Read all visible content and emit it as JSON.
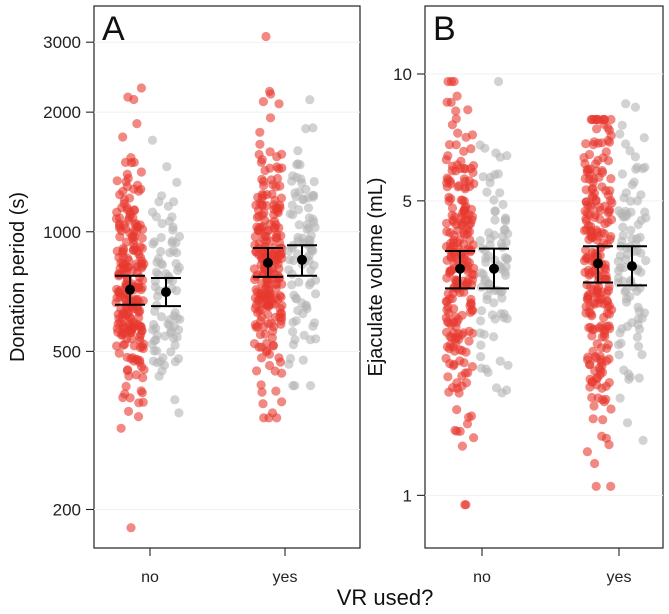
{
  "figure": {
    "shared_xlabel": "VR used?",
    "colors": {
      "red": "#e8382e",
      "grey": "#b4b4b4",
      "mean": "#000000",
      "frame": "#222222"
    }
  },
  "chart_data": [
    {
      "type": "scatter",
      "panel_label": "A",
      "ylabel": "Donation period (s)",
      "xlabel": "VR used?",
      "yscale": "log",
      "ylim": [
        160,
        3700
      ],
      "yticks": [
        200,
        500,
        1000,
        2000,
        3000
      ],
      "ytick_labels": [
        "200",
        "500",
        "1000",
        "2000",
        "3000"
      ],
      "categories": [
        "no",
        "yes"
      ],
      "series": [
        {
          "name": "red",
          "color": "#e8382e",
          "groups": [
            {
              "category": "no",
              "n": 230,
              "median": 720,
              "spread": 0.34,
              "min": 180,
              "max": 2300,
              "mean": 715,
              "ci": [
                655,
                775
              ]
            },
            {
              "category": "yes",
              "n": 240,
              "median": 840,
              "spread": 0.36,
              "min": 340,
              "max": 3100,
              "mean": 835,
              "ci": [
                770,
                910
              ]
            }
          ]
        },
        {
          "name": "grey",
          "color": "#b4b4b4",
          "groups": [
            {
              "category": "no",
              "n": 85,
              "median": 720,
              "spread": 0.3,
              "min": 350,
              "max": 1700,
              "mean": 705,
              "ci": [
                650,
                765
              ]
            },
            {
              "category": "yes",
              "n": 95,
              "median": 860,
              "spread": 0.34,
              "min": 410,
              "max": 2150,
              "mean": 850,
              "ci": [
                775,
                925
              ]
            }
          ]
        }
      ]
    },
    {
      "type": "scatter",
      "panel_label": "B",
      "ylabel": "Ejaculate volume (mL)",
      "xlabel": "VR used?",
      "yscale": "log",
      "ylim": [
        0.75,
        14.5
      ],
      "yticks": [
        1,
        5,
        10
      ],
      "ytick_labels": [
        "1",
        "5",
        "10"
      ],
      "categories": [
        "no",
        "yes"
      ],
      "series": [
        {
          "name": "red",
          "color": "#e8382e",
          "groups": [
            {
              "category": "no",
              "n": 230,
              "median": 3.5,
              "spread": 0.42,
              "min": 0.95,
              "max": 9.6,
              "mean": 3.45,
              "ci": [
                3.1,
                3.8
              ]
            },
            {
              "category": "yes",
              "n": 240,
              "median": 3.6,
              "spread": 0.42,
              "min": 1.05,
              "max": 7.8,
              "mean": 3.55,
              "ci": [
                3.2,
                3.9
              ]
            }
          ]
        },
        {
          "name": "grey",
          "color": "#b4b4b4",
          "groups": [
            {
              "category": "no",
              "n": 85,
              "median": 3.5,
              "spread": 0.38,
              "min": 1.75,
              "max": 9.6,
              "mean": 3.45,
              "ci": [
                3.1,
                3.85
              ]
            },
            {
              "category": "yes",
              "n": 95,
              "median": 3.6,
              "spread": 0.4,
              "min": 1.35,
              "max": 8.5,
              "mean": 3.5,
              "ci": [
                3.15,
                3.9
              ]
            }
          ]
        }
      ]
    }
  ]
}
